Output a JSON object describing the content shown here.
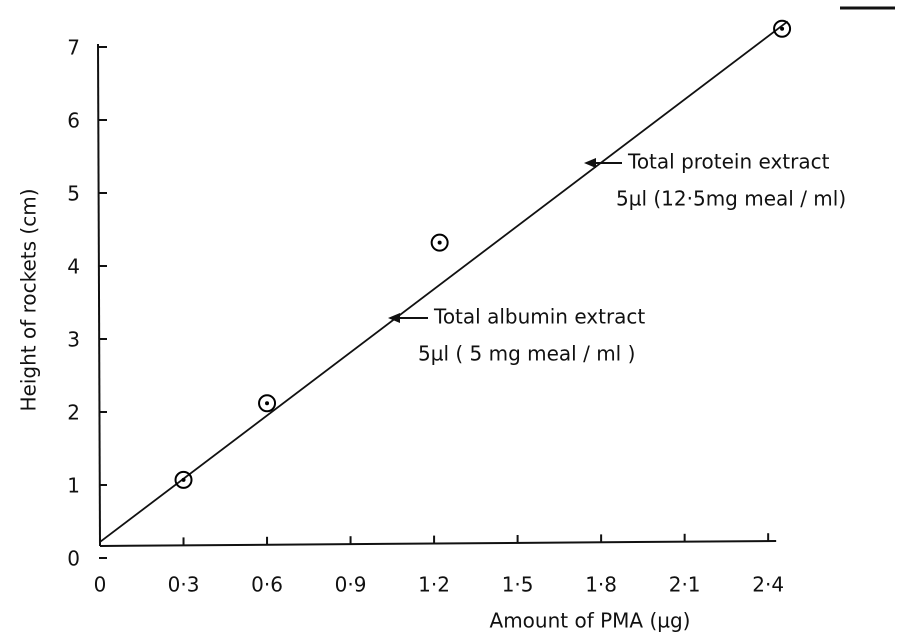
{
  "chart_data": {
    "type": "scatter",
    "x_label": "Amount of PMA (µg)",
    "y_label": "Height of rockets (cm)",
    "series": [
      {
        "x": [
          0.3,
          0.6,
          1.22,
          2.45
        ],
        "values": [
          1.07,
          2.12,
          4.32,
          7.25
        ],
        "color": "#000000"
      }
    ],
    "fit_line": {
      "x": [
        0,
        2.47
      ],
      "y": [
        0.22,
        7.35
      ]
    },
    "xlim": [
      0,
      2.5
    ],
    "ylim": [
      0,
      7.5
    ],
    "xticks": [
      0,
      {
        "value": 0.3,
        "label": "0·3"
      },
      {
        "value": 0.6,
        "label": "0·6"
      },
      {
        "value": 0.9,
        "label": "0·9"
      },
      {
        "value": 1.2,
        "label": "1·2"
      },
      {
        "value": 1.5,
        "label": "1·5"
      },
      {
        "value": 1.8,
        "label": "1·8"
      },
      {
        "value": 2.1,
        "label": "2·1"
      },
      {
        "value": 2.4,
        "label": "2·4"
      }
    ],
    "yticks": [
      0,
      1,
      2,
      3,
      4,
      5,
      6,
      7
    ],
    "grid": false,
    "annotations": [
      "Total protein extract",
      "5µl (12·5mg meal / ml)",
      "Total albumin extract",
      "5µl ( 5 mg meal / ml )"
    ]
  }
}
